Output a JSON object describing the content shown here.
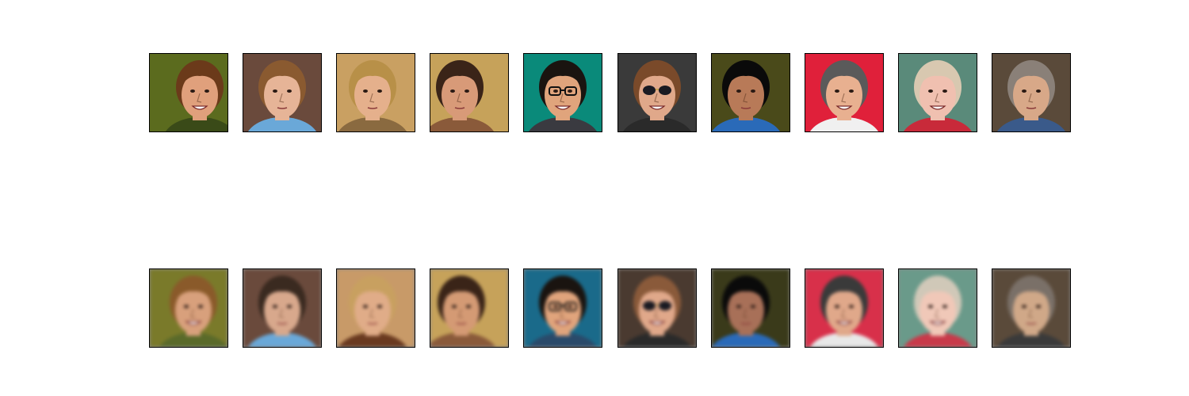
{
  "figure": {
    "rows": [
      {
        "role": "original",
        "faces": [
          {
            "bg": "#5b6b1e",
            "skin": "#e0a07c",
            "hair": "#6b3a1a",
            "shirt": "#3a4a18",
            "glasses": false,
            "sunglasses": false,
            "offset": 14,
            "smile": true
          },
          {
            "bg": "#6a4a3c",
            "skin": "#e6b497",
            "hair": "#8a5a30",
            "shirt": "#6aa8d8",
            "glasses": false,
            "sunglasses": false,
            "offset": 0,
            "smile": false
          },
          {
            "bg": "#c9a062",
            "skin": "#e5b08c",
            "hair": "#b89048",
            "shirt": "#8a6a40",
            "glasses": false,
            "sunglasses": false,
            "offset": -4,
            "smile": false
          },
          {
            "bg": "#c6a25a",
            "skin": "#d89a78",
            "hair": "#3a2418",
            "shirt": "#8a5a3a",
            "glasses": false,
            "sunglasses": false,
            "offset": -12,
            "smile": false
          },
          {
            "bg": "#0a8a7a",
            "skin": "#e0a47c",
            "hair": "#1a1410",
            "shirt": "#3a3a40",
            "glasses": true,
            "sunglasses": false,
            "offset": 0,
            "smile": true
          },
          {
            "bg": "#3a3a3a",
            "skin": "#e0a88a",
            "hair": "#7a4a2a",
            "shirt": "#2a2a2a",
            "glasses": false,
            "sunglasses": true,
            "offset": 0,
            "smile": true
          },
          {
            "bg": "#4a4a1a",
            "skin": "#b87a58",
            "hair": "#0a0a0a",
            "shirt": "#2a6ab8",
            "glasses": false,
            "sunglasses": false,
            "offset": -6,
            "smile": false
          },
          {
            "bg": "#e0203a",
            "skin": "#e8b090",
            "hair": "#5a5a5a",
            "shirt": "#f0f0f0",
            "glasses": false,
            "sunglasses": false,
            "offset": 0,
            "smile": true
          },
          {
            "bg": "#5a8a7a",
            "skin": "#f0c0b0",
            "hair": "#d8c8b0",
            "shirt": "#c82a3a",
            "glasses": false,
            "sunglasses": false,
            "offset": 0,
            "smile": true
          },
          {
            "bg": "#5a4a3a",
            "skin": "#d8a888",
            "hair": "#8a8078",
            "shirt": "#3a5a8a",
            "glasses": false,
            "sunglasses": false,
            "offset": 0,
            "smile": false
          }
        ]
      },
      {
        "role": "reconstruction",
        "faces": [
          {
            "bg": "#7a7a2a",
            "skin": "#d8a07c",
            "hair": "#8a5a2a",
            "shirt": "#5a6a2a",
            "glasses": false,
            "sunglasses": false,
            "offset": 6,
            "smile": true
          },
          {
            "bg": "#6a4a3c",
            "skin": "#d8a88c",
            "hair": "#3a2a20",
            "shirt": "#6aa8d8",
            "glasses": false,
            "sunglasses": false,
            "offset": 0,
            "smile": false
          },
          {
            "bg": "#c89a68",
            "skin": "#e0ac88",
            "hair": "#c8a060",
            "shirt": "#6a3a20",
            "glasses": false,
            "sunglasses": false,
            "offset": -4,
            "smile": false
          },
          {
            "bg": "#c6a25a",
            "skin": "#d49a74",
            "hair": "#3a2418",
            "shirt": "#8a5a3a",
            "glasses": false,
            "sunglasses": false,
            "offset": -10,
            "smile": false
          },
          {
            "bg": "#1a6a8a",
            "skin": "#e0a47c",
            "hair": "#1a1410",
            "shirt": "#2a4a6a",
            "glasses": true,
            "sunglasses": false,
            "offset": 0,
            "smile": true
          },
          {
            "bg": "#4a3a30",
            "skin": "#e0a88a",
            "hair": "#8a5a3a",
            "shirt": "#2a2a2a",
            "glasses": false,
            "sunglasses": true,
            "offset": 0,
            "smile": true
          },
          {
            "bg": "#3a3a1a",
            "skin": "#a87058",
            "hair": "#0a0a0a",
            "shirt": "#2a6ab8",
            "glasses": false,
            "sunglasses": false,
            "offset": -6,
            "smile": false
          },
          {
            "bg": "#d8304a",
            "skin": "#e0a88a",
            "hair": "#3a3a3a",
            "shirt": "#e8e8e8",
            "glasses": false,
            "sunglasses": false,
            "offset": 0,
            "smile": true
          },
          {
            "bg": "#6a9a8a",
            "skin": "#f0c8b8",
            "hair": "#d0c8b8",
            "shirt": "#c83a4a",
            "glasses": false,
            "sunglasses": false,
            "offset": 0,
            "smile": true
          },
          {
            "bg": "#5a4a3a",
            "skin": "#d0a888",
            "hair": "#7a7068",
            "shirt": "#3a3a3a",
            "glasses": false,
            "sunglasses": false,
            "offset": 0,
            "smile": false
          }
        ]
      }
    ]
  }
}
